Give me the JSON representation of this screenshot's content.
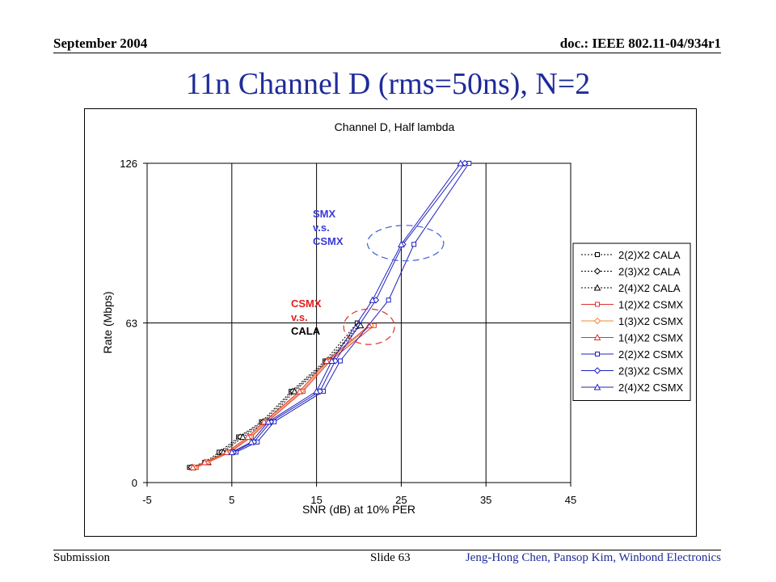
{
  "slide": {
    "header_left": "September 2004",
    "header_right": "doc.: IEEE 802.11-04/934r1",
    "title": "11n Channel D (rms=50ns), N=2",
    "footer_left": "Submission",
    "footer_mid": "Slide 63",
    "footer_right": "Jeng-Hong Chen, Pansop Kim, Winbond Electronics"
  },
  "chart_data": {
    "type": "line",
    "title": "Channel D, Half lambda",
    "xlabel": "SNR (dB) at 10% PER",
    "ylabel": "Rate (Mbps)",
    "xlim": [
      -5,
      45
    ],
    "ylim": [
      0,
      126
    ],
    "x_ticks": [
      "-5",
      "5",
      "15",
      "25",
      "35",
      "45"
    ],
    "y_ticks": [
      "0",
      "63",
      "126"
    ],
    "grid": true,
    "legend_position": "right",
    "annotations": [
      {
        "lines": [
          "SMX",
          "v.s.",
          "CSMX"
        ],
        "color": "#3a3ad8"
      },
      {
        "lines": [
          "CSMX",
          "v.s.",
          "CALA"
        ],
        "colors": [
          "#e02020",
          "#e02020",
          "#000000"
        ]
      }
    ],
    "highlight_ellipses": [
      {
        "cx": 25.5,
        "cy": 94.5,
        "rx": 4.5,
        "ry": 7,
        "color": "#4060d0"
      },
      {
        "cx": 21.2,
        "cy": 61.5,
        "rx": 3,
        "ry": 7,
        "color": "#e03030"
      }
    ],
    "series": [
      {
        "name": "2(2)X2 CALA",
        "color": "#000000",
        "marker": "square",
        "dash": true,
        "points": [
          [
            0,
            6
          ],
          [
            1.8,
            8
          ],
          [
            3.5,
            12
          ],
          [
            5.8,
            18
          ],
          [
            8.5,
            24
          ],
          [
            12,
            36
          ],
          [
            16,
            48
          ],
          [
            19.8,
            63
          ]
        ]
      },
      {
        "name": "2(3)X2 CALA",
        "color": "#000000",
        "marker": "diamond",
        "dash": true,
        "points": [
          [
            0.2,
            6
          ],
          [
            2,
            8
          ],
          [
            3.8,
            12
          ],
          [
            6,
            18
          ],
          [
            8.7,
            24
          ],
          [
            12.2,
            36
          ],
          [
            16.2,
            48
          ],
          [
            20,
            62
          ]
        ]
      },
      {
        "name": "2(4)X2 CALA",
        "color": "#000000",
        "marker": "triangle",
        "dash": true,
        "points": [
          [
            0.4,
            6
          ],
          [
            2.2,
            8
          ],
          [
            4,
            12
          ],
          [
            6.3,
            18
          ],
          [
            9,
            24
          ],
          [
            12.4,
            36
          ],
          [
            16.4,
            48
          ],
          [
            20.2,
            62
          ]
        ]
      },
      {
        "name": "1(2)X2 CSMX",
        "color": "#e03030",
        "marker": "square",
        "dash": false,
        "points": [
          [
            0.8,
            6
          ],
          [
            2.2,
            8
          ],
          [
            4.8,
            12
          ],
          [
            7.3,
            18
          ],
          [
            9.2,
            24
          ],
          [
            13.4,
            36
          ],
          [
            16.6,
            48
          ],
          [
            21.8,
            62
          ]
        ]
      },
      {
        "name": "1(3)X2 CSMX",
        "color": "#f08a30",
        "marker": "diamond",
        "dash": false,
        "points": [
          [
            0.6,
            6
          ],
          [
            2,
            8
          ],
          [
            4.6,
            12
          ],
          [
            7.1,
            18
          ],
          [
            9,
            24
          ],
          [
            13.2,
            36
          ],
          [
            16.4,
            48
          ],
          [
            21.4,
            62
          ]
        ]
      },
      {
        "name": "1(4)X2 CSMX",
        "color": "#e03030",
        "marker": "triangle",
        "dash": false,
        "points": [
          [
            0.4,
            6
          ],
          [
            1.8,
            8
          ],
          [
            4.4,
            12
          ],
          [
            6.9,
            18
          ],
          [
            8.8,
            24
          ],
          [
            13,
            36
          ],
          [
            16.2,
            48
          ],
          [
            21.2,
            62
          ]
        ]
      },
      {
        "name": "2(2)X2 CSMX",
        "color": "#2020c0",
        "marker": "square",
        "dash": false,
        "points": [
          [
            5.5,
            12
          ],
          [
            8,
            16
          ],
          [
            10,
            24
          ],
          [
            15.8,
            36
          ],
          [
            17.8,
            48
          ],
          [
            23.5,
            72
          ],
          [
            26.5,
            94
          ],
          [
            33,
            126
          ]
        ]
      },
      {
        "name": "2(3)X2 CSMX",
        "color": "#2020c0",
        "marker": "diamond",
        "dash": false,
        "points": [
          [
            5.2,
            12
          ],
          [
            7.6,
            16
          ],
          [
            9.6,
            24
          ],
          [
            15.4,
            36
          ],
          [
            17.2,
            48
          ],
          [
            22,
            72
          ],
          [
            25.2,
            94
          ],
          [
            32.5,
            126
          ]
        ]
      },
      {
        "name": "2(4)X2 CSMX",
        "color": "#2020c0",
        "marker": "triangle",
        "dash": false,
        "points": [
          [
            5,
            12
          ],
          [
            7.3,
            16
          ],
          [
            9.3,
            24
          ],
          [
            15,
            36
          ],
          [
            16.8,
            48
          ],
          [
            21.6,
            72
          ],
          [
            25,
            94
          ],
          [
            32,
            126
          ]
        ]
      }
    ]
  }
}
